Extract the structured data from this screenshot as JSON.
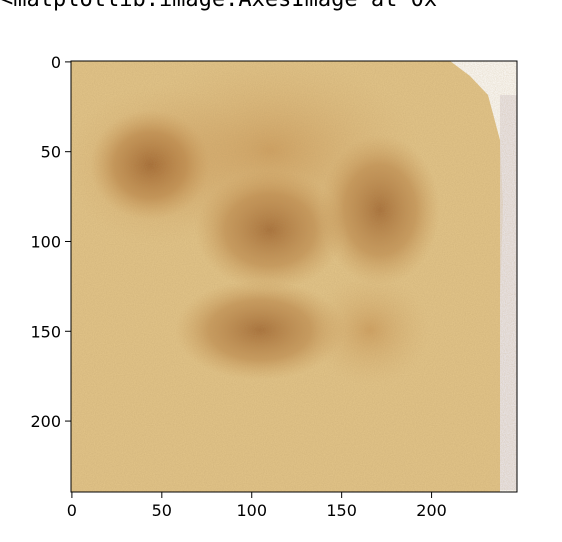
{
  "output_repr": "<matplotlib.image.AxesImage at 0x",
  "chart_data": {
    "type": "heatmap",
    "content": "image",
    "image_width": 248,
    "image_height": 240,
    "xlim": [
      -0.5,
      247.5
    ],
    "ylim": [
      239.5,
      -0.5
    ],
    "x_ticks": [
      0,
      50,
      100,
      150,
      200
    ],
    "y_ticks": [
      0,
      50,
      100,
      150,
      200
    ],
    "x_tick_labels": [
      "0",
      "50",
      "100",
      "150",
      "200"
    ],
    "y_tick_labels": [
      "0",
      "50",
      "100",
      "150",
      "200"
    ],
    "grid": false,
    "colors": {
      "toast_light": "#e8cf98",
      "toast_mid": "#d8b070",
      "toast_dark": "#a86a30",
      "crust": "#c9a060",
      "background": "#ffffff"
    }
  }
}
